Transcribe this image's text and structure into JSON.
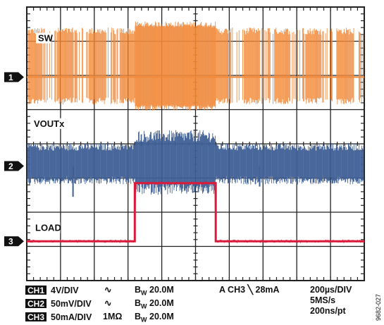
{
  "chart_data": {
    "type": "line",
    "title": "",
    "grid": true,
    "time_per_div": "200µs/DIV",
    "divisions": {
      "x": 10,
      "y": 8
    },
    "series": [
      {
        "name": "SW",
        "channel": "1",
        "scale": "4V/DIV",
        "color": "#f08a3c",
        "display": "dense switching pulses, ~4.3 div peak-to-peak; continuous burst between 3.2 and 5.6 div",
        "burst_start_div": 3.2,
        "burst_end_div": 5.6
      },
      {
        "name": "VOUTx",
        "channel": "2",
        "scale": "50mV/DIV",
        "color": "#3f5f95",
        "display": "ripple ~1 div peak-to-peak; increased ripple between 3.2 and 5.6 div",
        "ripple_light_div": 0.9,
        "ripple_heavy_div": 1.4
      },
      {
        "name": "LOAD",
        "channel": "3",
        "scale": "50mA/DIV",
        "color": "#d91c3c",
        "display": "load step",
        "x_div": [
          0,
          3.2,
          3.2,
          5.6,
          5.6,
          10
        ],
        "y_div": [
          0,
          0,
          1.7,
          1.7,
          0,
          0
        ]
      }
    ],
    "markers": [
      "1",
      "2",
      "3"
    ],
    "trigger": "A  CH3 ╲ 28mA",
    "sample_rate": "5MS/s",
    "resolution": "200ns/pt",
    "status_rows": [
      {
        "ch": "CH1",
        "scale": "4V/DIV",
        "coupling": "∿",
        "bw": "20.0M"
      },
      {
        "ch": "CH2",
        "scale": "50mV/DIV",
        "coupling": "∿",
        "bw": "20.0M"
      },
      {
        "ch": "CH3",
        "scale": "50mA/DIV",
        "coupling": "1MΩ",
        "bw": "20.0M"
      }
    ]
  },
  "figure_id": "9682-027",
  "colors": {
    "grid": "#222222",
    "background": "#ffffff",
    "marker_bg": "#111111"
  }
}
